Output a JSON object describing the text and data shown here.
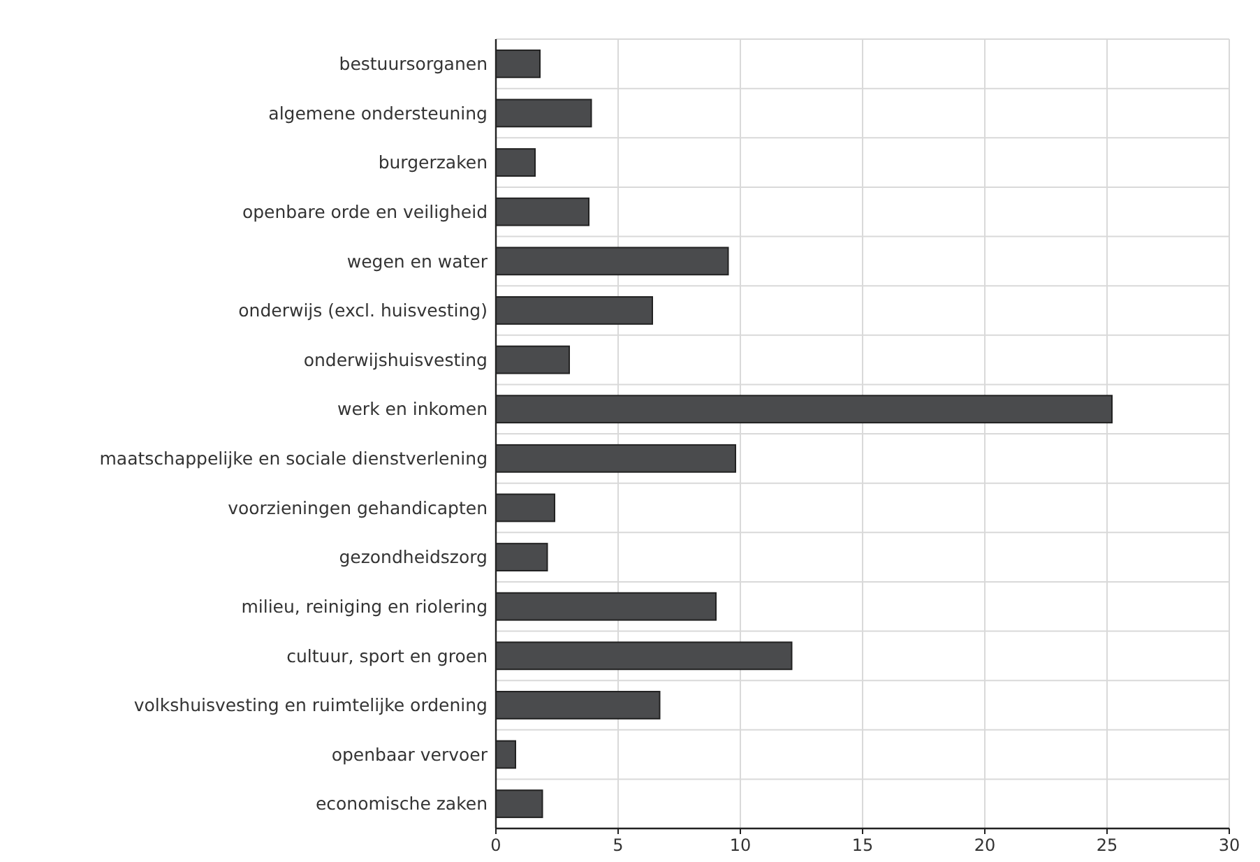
{
  "chart_data": {
    "type": "bar",
    "orientation": "horizontal",
    "categories": [
      "bestuursorganen",
      "algemene ondersteuning",
      "burgerzaken",
      "openbare orde en veiligheid",
      "wegen en water",
      "onderwijs (excl. huisvesting)",
      "onderwijshuisvesting",
      "werk en inkomen",
      "maatschappelijke en sociale dienstverlening",
      "voorzieningen gehandicapten",
      "gezondheidszorg",
      "milieu, reiniging en riolering",
      "cultuur, sport en groen",
      "volkshuisvesting en ruimtelijke ordening",
      "openbaar vervoer",
      "economische zaken"
    ],
    "values": [
      1.8,
      3.9,
      1.6,
      3.8,
      9.5,
      6.4,
      3.0,
      25.2,
      9.8,
      2.4,
      2.1,
      9.0,
      12.1,
      6.7,
      0.8,
      1.9
    ],
    "color": "#4a4b4d",
    "xlim": [
      0,
      30
    ],
    "xticks": [
      0,
      5,
      10,
      15,
      20,
      25,
      30
    ],
    "grid": true
  }
}
